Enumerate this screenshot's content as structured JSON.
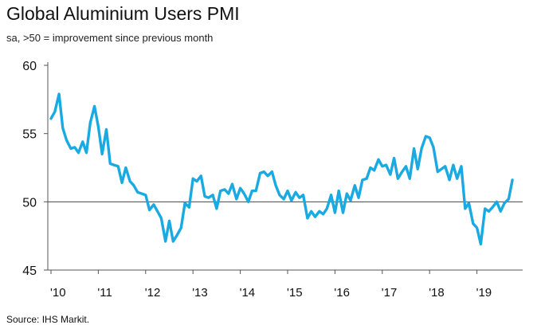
{
  "title": "Global Aluminium Users PMI",
  "subtitle": "sa, >50 = improvement since previous month",
  "source": "Source: IHS Markit.",
  "colors": {
    "line": "#1aaae2",
    "axis": "#555555",
    "reference": "#444444"
  },
  "chart_data": {
    "type": "line",
    "title": "Global Aluminium Users PMI",
    "subtitle": "sa, >50 = improvement since previous month",
    "xlabel": "",
    "ylabel": "",
    "ylim": [
      45,
      60
    ],
    "xlim": [
      2010.0,
      2019.75
    ],
    "y_ticks": [
      45,
      50,
      55,
      60
    ],
    "y_tick_labels": [
      "45",
      "50",
      "55",
      "60"
    ],
    "x_ticks": [
      2010,
      2011,
      2012,
      2013,
      2014,
      2015,
      2016,
      2017,
      2018,
      2019
    ],
    "x_tick_labels": [
      "'10",
      "'11",
      "'12",
      "'13",
      "'14",
      "'15",
      "'16",
      "'17",
      "'18",
      "'19"
    ],
    "reference_line": 50,
    "grid": false,
    "series": [
      {
        "name": "Global Aluminium Users PMI",
        "x": [
          2010.0,
          2010.08,
          2010.17,
          2010.25,
          2010.33,
          2010.42,
          2010.5,
          2010.58,
          2010.67,
          2010.75,
          2010.83,
          2010.92,
          2011.0,
          2011.08,
          2011.17,
          2011.25,
          2011.33,
          2011.42,
          2011.5,
          2011.58,
          2011.67,
          2011.75,
          2011.83,
          2011.92,
          2012.0,
          2012.08,
          2012.17,
          2012.25,
          2012.33,
          2012.42,
          2012.5,
          2012.58,
          2012.67,
          2012.75,
          2012.83,
          2012.92,
          2013.0,
          2013.08,
          2013.17,
          2013.25,
          2013.33,
          2013.42,
          2013.5,
          2013.58,
          2013.67,
          2013.75,
          2013.83,
          2013.92,
          2014.0,
          2014.08,
          2014.17,
          2014.25,
          2014.33,
          2014.42,
          2014.5,
          2014.58,
          2014.67,
          2014.75,
          2014.83,
          2014.92,
          2015.0,
          2015.08,
          2015.17,
          2015.25,
          2015.33,
          2015.42,
          2015.5,
          2015.58,
          2015.67,
          2015.75,
          2015.83,
          2015.92,
          2016.0,
          2016.08,
          2016.17,
          2016.25,
          2016.33,
          2016.42,
          2016.5,
          2016.58,
          2016.67,
          2016.75,
          2016.83,
          2016.92,
          2017.0,
          2017.08,
          2017.17,
          2017.25,
          2017.33,
          2017.42,
          2017.5,
          2017.58,
          2017.67,
          2017.75,
          2017.83,
          2017.92,
          2018.0,
          2018.08,
          2018.17,
          2018.25,
          2018.33,
          2018.42,
          2018.5,
          2018.58,
          2018.67,
          2018.75,
          2018.83,
          2018.92,
          2019.0,
          2019.08,
          2019.17,
          2019.25,
          2019.33,
          2019.42,
          2019.5,
          2019.58,
          2019.67,
          2019.75
        ],
        "values": [
          56.1,
          56.6,
          57.9,
          55.4,
          54.5,
          53.9,
          54.0,
          53.6,
          54.4,
          53.6,
          55.8,
          57.0,
          55.5,
          53.5,
          55.3,
          52.8,
          52.7,
          52.6,
          51.4,
          52.5,
          51.5,
          51.2,
          50.7,
          50.6,
          50.5,
          49.4,
          49.8,
          49.3,
          48.8,
          47.1,
          48.6,
          47.1,
          47.6,
          48.1,
          49.9,
          49.6,
          51.7,
          51.5,
          51.9,
          50.4,
          50.3,
          50.5,
          49.5,
          50.8,
          50.9,
          50.6,
          51.3,
          50.2,
          51.0,
          50.6,
          50.0,
          50.8,
          50.8,
          52.1,
          52.2,
          51.9,
          52.2,
          51.2,
          50.5,
          50.2,
          50.8,
          50.1,
          50.7,
          50.3,
          50.5,
          48.8,
          49.3,
          48.9,
          49.3,
          49.1,
          49.5,
          50.5,
          49.2,
          50.8,
          49.2,
          50.6,
          50.1,
          51.2,
          50.3,
          51.6,
          51.7,
          52.5,
          52.3,
          53.1,
          52.6,
          52.7,
          52.0,
          53.2,
          51.7,
          52.2,
          52.6,
          51.7,
          53.9,
          52.4,
          53.9,
          54.8,
          54.7,
          54.0,
          52.2,
          52.4,
          52.6,
          51.6,
          52.7,
          51.7,
          52.6,
          49.5,
          49.9,
          48.4,
          48.1,
          46.9,
          49.5,
          49.3,
          49.6,
          50.0,
          49.3,
          49.9,
          50.2,
          51.6
        ]
      }
    ]
  }
}
